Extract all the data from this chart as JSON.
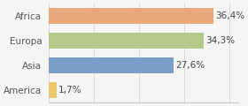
{
  "categories": [
    "Africa",
    "Europa",
    "Asia",
    "America"
  ],
  "values": [
    36.4,
    34.3,
    27.6,
    1.7
  ],
  "labels": [
    "36,4%",
    "34,3%",
    "27,6%",
    "1,7%"
  ],
  "bar_colors": [
    "#e8a87c",
    "#b5c98a",
    "#7b9ec8",
    "#e8c96e"
  ],
  "background_color": "#f5f5f5",
  "xlim": [
    0,
    42
  ],
  "label_fontsize": 7.5,
  "tick_fontsize": 7.5
}
